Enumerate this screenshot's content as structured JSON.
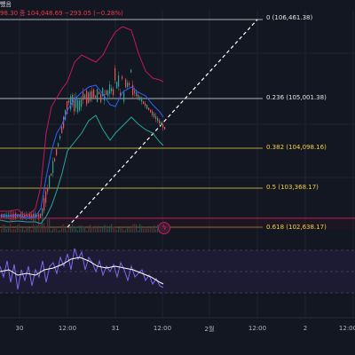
{
  "header": {
    "label_tail": "뺐음",
    "price_tail": "98.30",
    "close_label": "종",
    "close_value": "104,048.69",
    "change": "−293.05 (−0.28%)"
  },
  "fib_levels": [
    {
      "ratio": "0",
      "price": "106,461.38",
      "label": "0 (106,461.38)",
      "color": "#e6e6e6",
      "style": "white"
    },
    {
      "ratio": "0.236",
      "price": "105,001.38",
      "label": "0.236 (105,001.38)",
      "color": "#e6e6e6",
      "style": "white"
    },
    {
      "ratio": "0.382",
      "price": "104,098.16",
      "label": "0.382 (104,098.16)",
      "color": "#f5d142",
      "style": "yellow"
    },
    {
      "ratio": "0.5",
      "price": "103,368.17",
      "label": "0.5 (103,368.17)",
      "color": "#f5d142",
      "style": "yellow"
    },
    {
      "ratio": "0.618",
      "price": "102,638.17",
      "label": "0.618 (102,638.17)",
      "color": "#f5d142",
      "style": "yellow"
    }
  ],
  "alert_icon": "alert-icon",
  "x_axis": [
    "30",
    "12:00",
    "31",
    "12:00",
    "2월",
    "12:00",
    "2",
    "12:00"
  ],
  "colors": {
    "background": "#131722",
    "upper_band": "#c2185b",
    "lower_band": "#26a69a",
    "mid_line": "#2962ff",
    "oscillator": "#7b68ee",
    "oscillator_signal": "#ffffff",
    "fib_white": "#e6e6e6",
    "fib_yellow": "#f5d142",
    "dashed_trend": "#ffffff",
    "red_level": "#e91e63"
  }
}
